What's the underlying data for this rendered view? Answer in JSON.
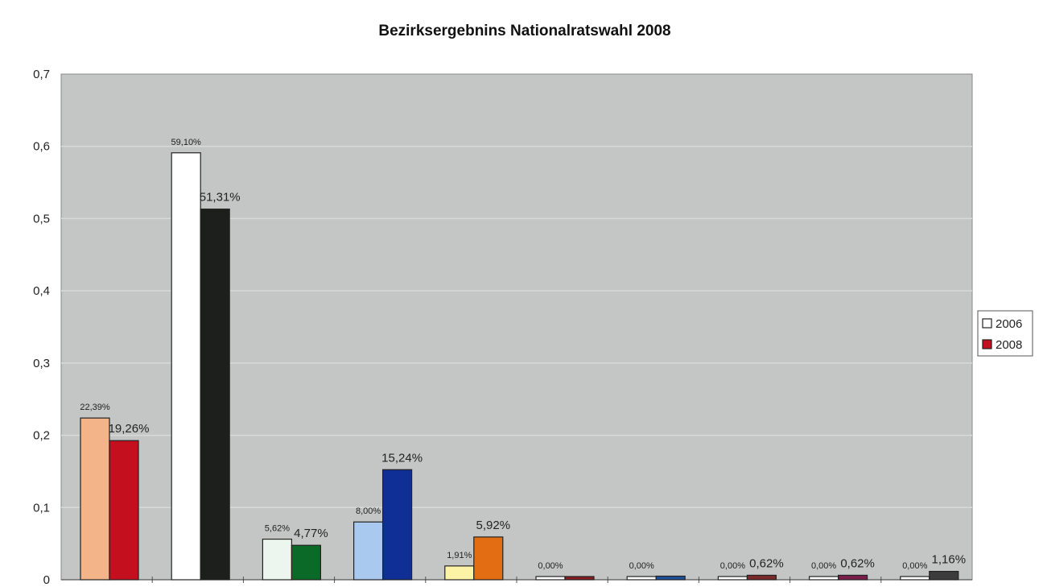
{
  "chart_data": {
    "type": "bar",
    "title": "Bezirksergebnins Nationalratswahl 2008",
    "xlabel": "",
    "ylabel": "",
    "ylim": [
      0,
      0.7
    ],
    "yticks": [
      "0",
      "0,1",
      "0,2",
      "0,3",
      "0,4",
      "0,5",
      "0,6",
      "0,7"
    ],
    "grid": true,
    "legend_position": "right",
    "categories": [
      "",
      "",
      "",
      "",
      "",
      "",
      "",
      "",
      "",
      ""
    ],
    "series": [
      {
        "name": "2006",
        "values": [
          0.2239,
          0.591,
          0.0562,
          0.08,
          0.0191,
          0,
          0,
          0,
          0,
          0
        ],
        "labels": [
          "22,39%",
          "59,10%",
          "5,62%",
          "8,00%",
          "1,91%",
          "0,00%",
          "0,00%",
          "0,00%",
          "0,00%",
          "0,00%"
        ],
        "colors": [
          "#f2b488",
          "#ffffff",
          "#ecf6ee",
          "#a9c9ee",
          "#fdf3a6",
          "#ffffff",
          "#ffffff",
          "#ffffff",
          "#ffffff",
          "#ffffff"
        ]
      },
      {
        "name": "2008",
        "values": [
          0.1926,
          0.5131,
          0.0477,
          0.1524,
          0.0592,
          0.004,
          0.005,
          0.0062,
          0.0062,
          0.0116
        ],
        "labels": [
          "19,26%",
          "51,31%",
          "4,77%",
          "15,24%",
          "5,92%",
          "",
          "",
          "0,62%",
          "0,62%",
          "1,16%"
        ],
        "colors": [
          "#c40f1f",
          "#1c1f1c",
          "#0b6a28",
          "#102f96",
          "#e36d12",
          "#8a1d22",
          "#1e4f9a",
          "#7a2a2a",
          "#7a1d4a",
          "#3c3c3c"
        ]
      }
    ],
    "legend": {
      "entries": [
        {
          "label": "2006",
          "color": "#ffffff"
        },
        {
          "label": "2008",
          "color": "#c40f1f"
        }
      ]
    },
    "colors": {
      "plot_background": "#c4c6c5",
      "gridline": "#d8dad9"
    }
  }
}
